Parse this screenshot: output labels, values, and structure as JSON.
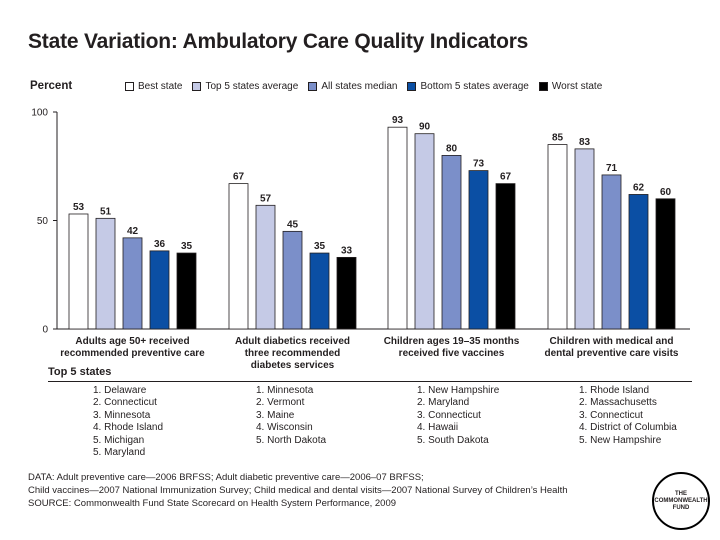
{
  "title": "State Variation: Ambulatory Care Quality Indicators",
  "y_axis_label": "Percent",
  "legend": [
    {
      "label": "Best state",
      "color": "#ffffff"
    },
    {
      "label": "Top 5 states average",
      "color": "#c5cae6"
    },
    {
      "label": "All states median",
      "color": "#7b8fc9"
    },
    {
      "label": "Bottom 5 states average",
      "color": "#0b4fa4"
    },
    {
      "label": "Worst state",
      "color": "#000000"
    }
  ],
  "chart_data": {
    "type": "bar",
    "title": "State Variation: Ambulatory Care Quality Indicators",
    "ylabel": "Percent",
    "ylim": [
      0,
      100
    ],
    "yticks": [
      0,
      50,
      100
    ],
    "grid": false,
    "legend_position": "top",
    "categories": [
      "Adults age 50+ received recommended preventive care",
      "Adult diabetics received three recommended diabetes services",
      "Children ages 19–35 months received five vaccines",
      "Children with medical and dental preventive care visits"
    ],
    "category_lines": [
      [
        "Adults age 50+ received",
        "recommended preventive care"
      ],
      [
        "Adult diabetics received",
        "three recommended",
        "diabetes services"
      ],
      [
        "Children ages 19–35 months",
        "received five vaccines"
      ],
      [
        "Children with medical and",
        "dental preventive care visits"
      ]
    ],
    "series": [
      {
        "name": "Best state",
        "values": [
          53,
          67,
          93,
          85
        ]
      },
      {
        "name": "Top 5 states average",
        "values": [
          51,
          57,
          90,
          83
        ]
      },
      {
        "name": "All states median",
        "values": [
          42,
          45,
          80,
          71
        ]
      },
      {
        "name": "Bottom 5 states average",
        "values": [
          36,
          35,
          73,
          62
        ]
      },
      {
        "name": "Worst state",
        "values": [
          35,
          33,
          67,
          60
        ]
      }
    ]
  },
  "top5": {
    "title": "Top 5 states",
    "columns": [
      [
        "1. Delaware",
        "2. Connecticut",
        "3. Minnesota",
        "4. Rhode Island",
        "5. Michigan",
        "5. Maryland"
      ],
      [
        "1. Minnesota",
        "2. Vermont",
        "3. Maine",
        "4. Wisconsin",
        "5. North Dakota"
      ],
      [
        "1. New Hampshire",
        "2. Maryland",
        "3. Connecticut",
        "4. Hawaii",
        "5. South Dakota"
      ],
      [
        "1. Rhode Island",
        "2. Massachusetts",
        "3. Connecticut",
        "4. District of Columbia",
        "5. New Hampshire"
      ]
    ]
  },
  "footnotes": [
    "DATA: Adult preventive care—2006 BRFSS; Adult diabetic preventive care—2006–07 BRFSS;",
    "Child vaccines—2007 National Immunization Survey; Child medical and dental visits—2007 National Survey of Children’s Health",
    "SOURCE: Commonwealth Fund State Scorecard on Health System Performance, 2009"
  ],
  "logo_lines": [
    "THE",
    "COMMONWEALTH",
    "FUND"
  ]
}
